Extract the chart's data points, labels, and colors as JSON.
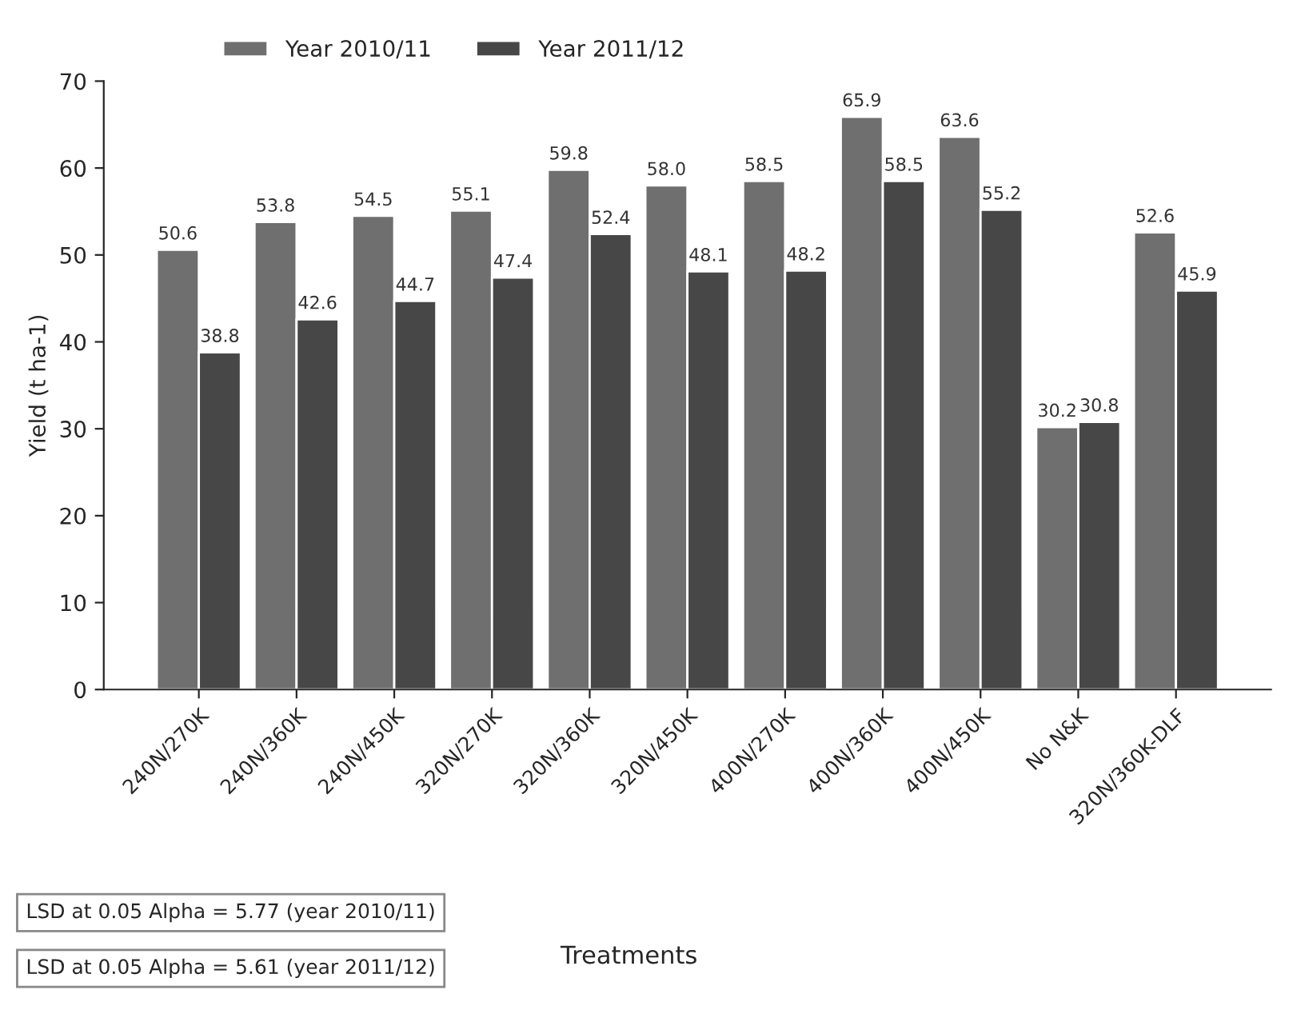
{
  "chart_data": {
    "type": "bar",
    "xlabel": "Treatments",
    "ylabel": "Yield (t ha-1)",
    "categories": [
      "240N/270K",
      "240N/360K",
      "240N/450K",
      "320N/270K",
      "320N/360K",
      "320N/450K",
      "400N/270K",
      "400N/360K",
      "400N/450K",
      "No N&K",
      "320N/360K-DLF"
    ],
    "series": [
      {
        "name": "Year 2010/11",
        "color": "#6f6f6f",
        "values": [
          50.6,
          53.8,
          54.5,
          55.1,
          59.8,
          58.0,
          58.5,
          65.9,
          63.6,
          30.2,
          52.6
        ],
        "value_labels": [
          "50.6",
          "53.8",
          "54.5",
          "55.1",
          "59.8",
          "58.0",
          "58.5",
          "65.9",
          "63.6",
          "30.2",
          "52.6"
        ]
      },
      {
        "name": "Year 2011/12",
        "color": "#474747",
        "values": [
          38.8,
          42.6,
          44.7,
          47.4,
          52.4,
          48.1,
          48.2,
          58.5,
          55.2,
          30.8,
          45.9
        ],
        "value_labels": [
          "38.8",
          "42.6",
          "44.7",
          "47.4",
          "52.4",
          "48.1",
          "48.2",
          "58.5",
          "55.2",
          "30.8",
          "45.9"
        ]
      }
    ],
    "ylim": [
      0,
      70
    ],
    "yticks": [
      0,
      10,
      20,
      30,
      40,
      50,
      60,
      70
    ],
    "grid": false,
    "legend": "top",
    "annotations": [
      "LSD at 0.05 Alpha = 5.77 (year 2010/11)",
      "LSD at 0.05 Alpha = 5.61 (year 2011/12)"
    ]
  }
}
